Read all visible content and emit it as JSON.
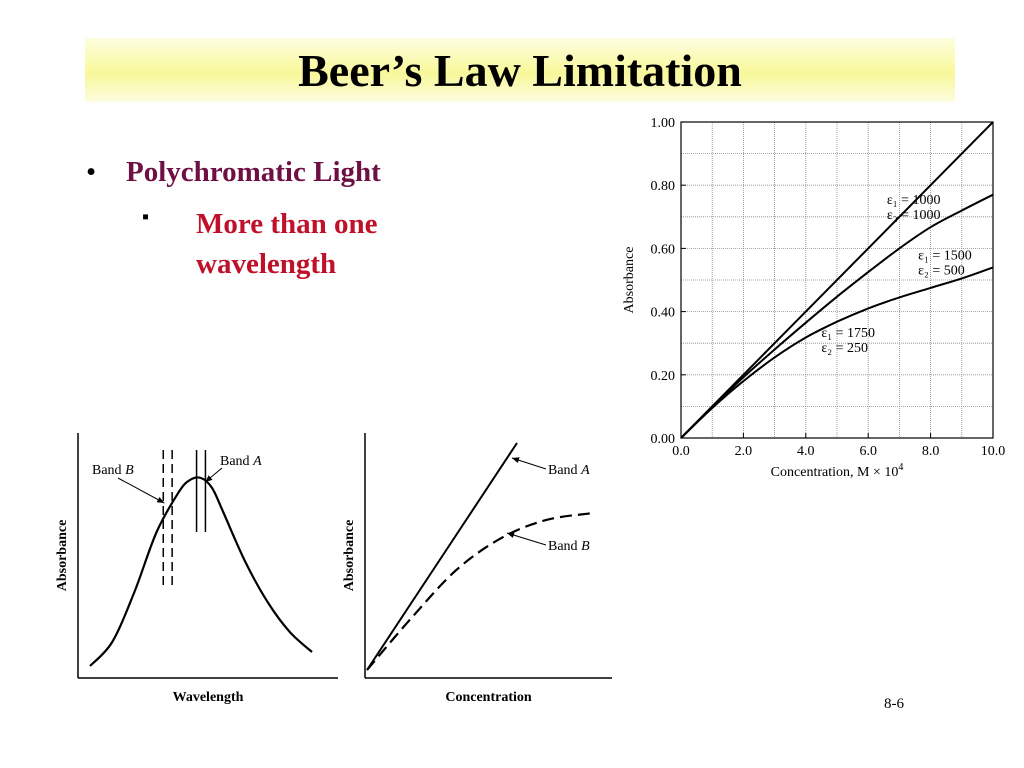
{
  "slide": {
    "title": "Beer’s Law Limitation",
    "bullet_char": "•",
    "sub_bullet_char": "▪",
    "bullet": "Polychromatic Light",
    "sub_bullet": "More than one wavelength",
    "slide_number": "8-6",
    "colors": {
      "title_band": "#f9f9a4",
      "bullet": "#6e1044",
      "sub_bullet": "#c0102a"
    }
  },
  "chart_data": [
    {
      "type": "line",
      "xlabel": "Concentration, M × 10",
      "xlabel_sup": "4",
      "ylabel": "Absorbance",
      "xlim": [
        0,
        10
      ],
      "ylim": [
        0,
        1
      ],
      "x_ticks": [
        "0.0",
        "2.0",
        "4.0",
        "6.0",
        "8.0",
        "10.0"
      ],
      "y_ticks": [
        "0.00",
        "0.20",
        "0.40",
        "0.60",
        "0.80",
        "1.00"
      ],
      "grid": true,
      "series": [
        {
          "label_lines": [
            "ε₁ = 1000",
            "ε₂ = 1000"
          ],
          "x": [
            0,
            2,
            4,
            6,
            8,
            10
          ],
          "y": [
            0,
            0.2,
            0.4,
            0.6,
            0.8,
            1.0
          ]
        },
        {
          "label_lines": [
            "ε₁ = 1500",
            "ε₂ = 500"
          ],
          "x": [
            0,
            1,
            2,
            3,
            4,
            5,
            6,
            7,
            8,
            9,
            10
          ],
          "y": [
            0,
            0.098,
            0.192,
            0.28,
            0.365,
            0.447,
            0.525,
            0.6,
            0.667,
            0.72,
            0.77
          ]
        },
        {
          "label_lines": [
            "ε₁ = 1750",
            "ε₂ = 250"
          ],
          "x": [
            0,
            1,
            2,
            3,
            4,
            5,
            6,
            7,
            8,
            9,
            10
          ],
          "y": [
            0,
            0.095,
            0.18,
            0.255,
            0.318,
            0.368,
            0.41,
            0.445,
            0.475,
            0.505,
            0.54
          ]
        }
      ]
    },
    {
      "type": "line",
      "xlabel": "Wavelength",
      "ylabel": "Absorbance",
      "series": [
        {
          "name": "absorption spectrum",
          "x": [
            0,
            0.1,
            0.2,
            0.3,
            0.4,
            0.45,
            0.5,
            0.55,
            0.6,
            0.7,
            0.8,
            0.9,
            1.0
          ],
          "y": [
            0.03,
            0.15,
            0.4,
            0.7,
            0.9,
            0.96,
            0.97,
            0.92,
            0.8,
            0.55,
            0.35,
            0.2,
            0.1
          ]
        }
      ],
      "bands": [
        {
          "label_main": "Band ",
          "label_italic": "A",
          "style": "solid",
          "x": [
            0.48,
            0.52
          ]
        },
        {
          "label_main": "Band ",
          "label_italic": "B",
          "style": "dashed",
          "x": [
            0.33,
            0.37
          ]
        }
      ]
    },
    {
      "type": "line",
      "xlabel": "Concentration",
      "ylabel": "Absorbance",
      "series": [
        {
          "label_main": "Band ",
          "label_italic": "A",
          "style": "solid",
          "x": [
            0,
            0.5,
            1.0
          ],
          "y": [
            0,
            0.5,
            1.0
          ]
        },
        {
          "label_main": "Band ",
          "label_italic": "B",
          "style": "dashed",
          "x": [
            0,
            0.2,
            0.4,
            0.6,
            0.8,
            1.0
          ],
          "y": [
            0,
            0.23,
            0.44,
            0.58,
            0.66,
            0.69
          ]
        }
      ]
    }
  ]
}
